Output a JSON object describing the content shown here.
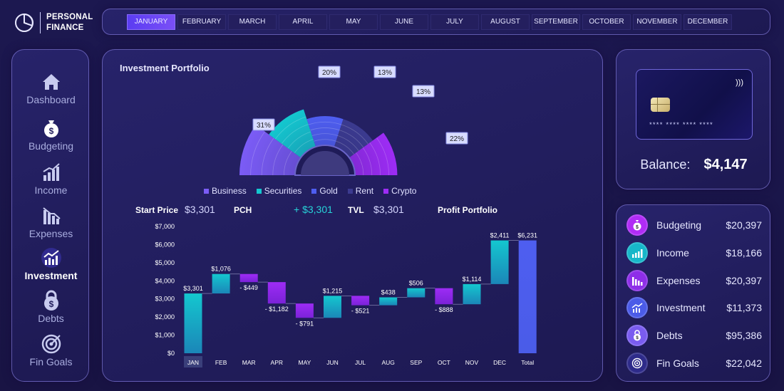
{
  "app": {
    "title_line1": "PERSONAL",
    "title_line2": "FINANCE",
    "logo_icon": "pie-chart-icon"
  },
  "months": [
    "JANUARY",
    "FEBRUARY",
    "MARCH",
    "APRIL",
    "MAY",
    "JUNE",
    "JULY",
    "AUGUST",
    "SEPTEMBER",
    "OCTOBER",
    "NOVEMBER",
    "DECEMBER"
  ],
  "active_month": "JANUARY",
  "sidebar": {
    "items": [
      {
        "label": "Dashboard",
        "icon": "house-icon"
      },
      {
        "label": "Budgeting",
        "icon": "money-bag-icon"
      },
      {
        "label": "Income",
        "icon": "bar-chart-up-icon"
      },
      {
        "label": "Expenses",
        "icon": "bar-chart-down-icon"
      },
      {
        "label": "Investment",
        "icon": "investment-chart-icon"
      },
      {
        "label": "Debts",
        "icon": "lock-dollar-icon"
      },
      {
        "label": "Fin Goals",
        "icon": "target-icon"
      }
    ],
    "active": "Investment"
  },
  "portfolio": {
    "title": "Investment Portfolio",
    "legend": [
      {
        "name": "Business",
        "color": "#7b5cf6"
      },
      {
        "name": "Securities",
        "color": "#14c7cf"
      },
      {
        "name": "Gold",
        "color": "#4e5ef0"
      },
      {
        "name": "Rent",
        "color": "#3b3a8f"
      },
      {
        "name": "Crypto",
        "color": "#9d2cf5"
      }
    ]
  },
  "stats": {
    "start_price_label": "Start Price",
    "start_price": "$3,301",
    "pch_label": "PCH",
    "pch": "+ $3,301",
    "tvl_label": "TVL",
    "tvl": "$3,301",
    "profit_label": "Profit Portfolio"
  },
  "chart_data": [
    {
      "type": "pie",
      "variant": "half-polar",
      "categories": [
        "Business",
        "Securities",
        "Gold",
        "Rent",
        "Crypto"
      ],
      "values": [
        31,
        20,
        13,
        13,
        22
      ],
      "labels": [
        "31%",
        "20%",
        "13%",
        "13%",
        "22%"
      ],
      "colors": [
        "#7b5cf6",
        "#14c7cf",
        "#4e5ef0",
        "#3b3a8f",
        "#9d2cf5"
      ]
    },
    {
      "type": "bar",
      "variant": "waterfall",
      "categories": [
        "JAN",
        "FEB",
        "MAR",
        "APR",
        "MAY",
        "JUN",
        "JUL",
        "AUG",
        "SEP",
        "OCT",
        "NOV",
        "DEC",
        "Total"
      ],
      "changes": [
        3301,
        1076,
        -449,
        -1182,
        -791,
        1215,
        -521,
        438,
        506,
        -888,
        1114,
        2411,
        6231
      ],
      "labels": [
        "$3,301",
        "$1,076",
        "- $449",
        "- $1,182",
        "- $791",
        "$1,215",
        "- $521",
        "$438",
        "$506",
        "- $888",
        "$1,114",
        "$2,411",
        "$6,231"
      ],
      "ylim": [
        0,
        7000
      ],
      "yticks": [
        "$0",
        "$1,000",
        "$2,000",
        "$3,000",
        "$4,000",
        "$5,000",
        "$6,000",
        "$7,000"
      ],
      "colors": {
        "increase": "#14c7cf",
        "decrease": "#9d2cf5",
        "total": "#4e5ef0"
      },
      "highlight_category": "JAN"
    }
  ],
  "card": {
    "number": "**** **** **** ****",
    "nfc_icon": "contactless-icon",
    "chip_icon": "card-chip-icon"
  },
  "balance": {
    "label": "Balance:",
    "value": "$4,147"
  },
  "summary": [
    {
      "label": "Budgeting",
      "value": "$20,397",
      "color": "#b02cf5",
      "icon": "money-bag-icon"
    },
    {
      "label": "Income",
      "value": "$18,166",
      "color": "#17b7c9",
      "icon": "bar-chart-up-icon"
    },
    {
      "label": "Expenses",
      "value": "$20,397",
      "color": "#8e2ee8",
      "icon": "bar-chart-down-icon"
    },
    {
      "label": "Investment",
      "value": "$11,373",
      "color": "#4b5be8",
      "icon": "investment-chart-icon"
    },
    {
      "label": "Debts",
      "value": "$95,386",
      "color": "#7a5cf0",
      "icon": "lock-dollar-icon"
    },
    {
      "label": "Fin Goals",
      "value": "$22,042",
      "color": "#2e2b8a",
      "icon": "target-icon"
    }
  ]
}
